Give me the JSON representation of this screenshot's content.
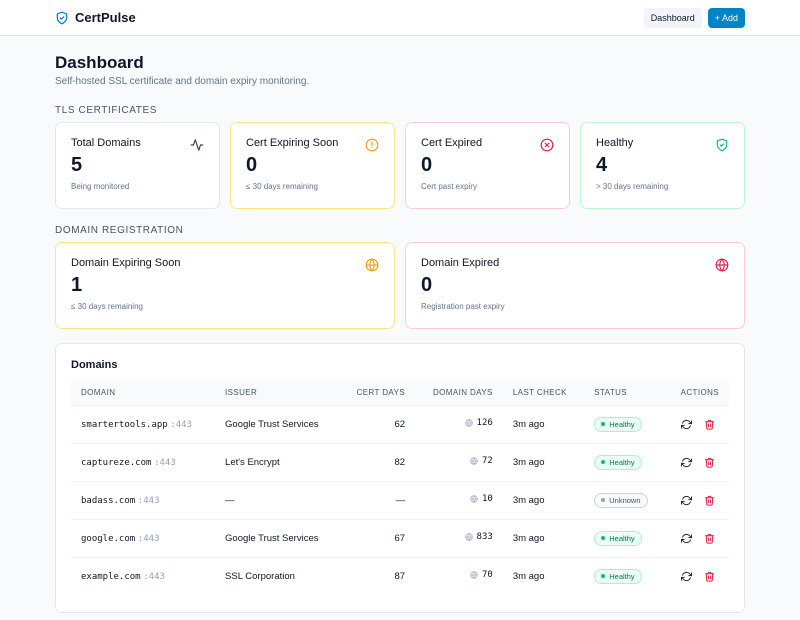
{
  "app": {
    "name": "CertPulse"
  },
  "nav": {
    "dashboard_label": "Dashboard",
    "add_label": "+ Add"
  },
  "page": {
    "title": "Dashboard",
    "subtitle": "Self-hosted SSL certificate and domain expiry monitoring."
  },
  "tls": {
    "section_title": "TLS CERTIFICATES",
    "cards": [
      {
        "label": "Total Domains",
        "value": "5",
        "sub": "Being monitored",
        "icon": "activity-icon"
      },
      {
        "label": "Cert Expiring Soon",
        "value": "0",
        "sub": "≤ 30 days remaining",
        "icon": "alert-circle-icon",
        "color": "#f59e0b"
      },
      {
        "label": "Cert Expired",
        "value": "0",
        "sub": "Cert past expiry",
        "icon": "x-circle-icon",
        "color": "#e11d48"
      },
      {
        "label": "Healthy",
        "value": "4",
        "sub": "> 30 days remaining",
        "icon": "shield-check-icon",
        "color": "#10b981"
      }
    ]
  },
  "domain_reg": {
    "section_title": "DOMAIN REGISTRATION",
    "cards": [
      {
        "label": "Domain Expiring Soon",
        "value": "1",
        "sub": "≤ 30 days remaining",
        "icon": "globe-icon",
        "color": "#f59e0b"
      },
      {
        "label": "Domain Expired",
        "value": "0",
        "sub": "Registration past expiry",
        "icon": "globe-icon",
        "color": "#e11d48"
      }
    ]
  },
  "domains": {
    "title": "Domains",
    "columns": [
      "DOMAIN",
      "ISSUER",
      "CERT DAYS",
      "DOMAIN DAYS",
      "LAST CHECK",
      "STATUS",
      "ACTIONS"
    ],
    "rows": [
      {
        "domain": "smartertools.app",
        "port": ":443",
        "issuer": "Google Trust Services",
        "cert_days": "62",
        "domain_days": "126",
        "last_check": "3m ago",
        "status": "Healthy"
      },
      {
        "domain": "captureze.com",
        "port": ":443",
        "issuer": "Let's Encrypt",
        "cert_days": "82",
        "domain_days": "72",
        "last_check": "3m ago",
        "status": "Healthy"
      },
      {
        "domain": "badass.com",
        "port": ":443",
        "issuer": "—",
        "cert_days": "—",
        "domain_days": "10",
        "last_check": "3m ago",
        "status": "Unknown"
      },
      {
        "domain": "google.com",
        "port": ":443",
        "issuer": "Google Trust Services",
        "cert_days": "67",
        "domain_days": "833",
        "last_check": "3m ago",
        "status": "Healthy"
      },
      {
        "domain": "example.com",
        "port": ":443",
        "issuer": "SSL Corporation",
        "cert_days": "87",
        "domain_days": "70",
        "last_check": "3m ago",
        "status": "Healthy"
      }
    ]
  },
  "colors": {
    "accent": "#0284c7",
    "amber": "#f59e0b",
    "rose": "#e11d48",
    "green": "#10b981"
  }
}
